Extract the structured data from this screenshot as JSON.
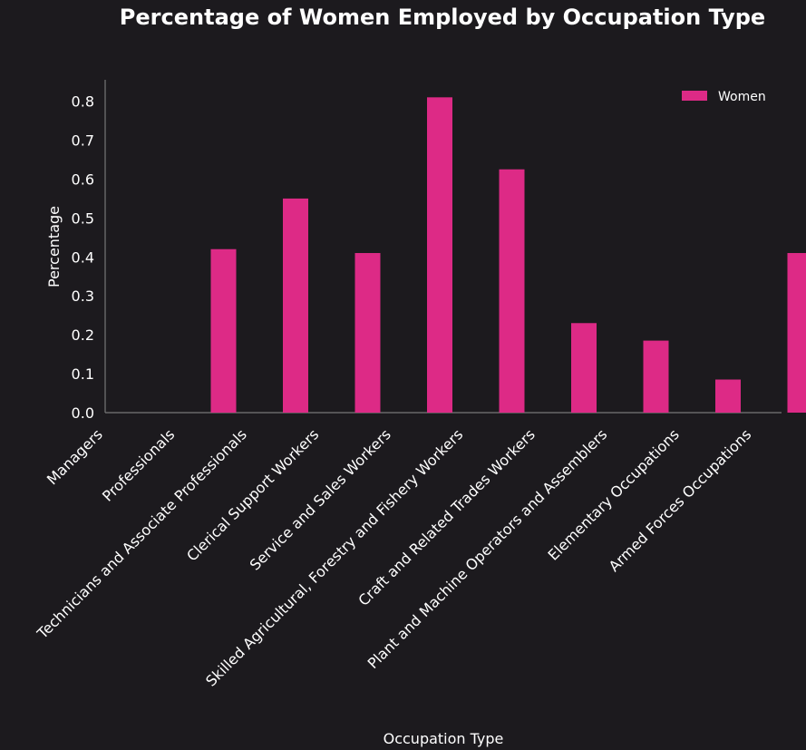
{
  "chart_data": {
    "type": "bar",
    "title": "Percentage of Women Employed by Occupation Type",
    "xlabel": "Occupation Type",
    "ylabel": "Percentage",
    "categories": [
      "Managers",
      "Professionals",
      "Technicians and Associate Professionals",
      "Clerical Support Workers",
      "Service and Sales Workers",
      "Skilled Agricultural, Forestry and Fishery Workers",
      "Craft and Related Trades Workers",
      "Plant and Machine Operators and Assemblers",
      "Elementary Occupations",
      "Armed Forces Occupations"
    ],
    "series": [
      {
        "name": "Women",
        "color": "#dd2a86",
        "values": [
          0.0,
          0.42,
          0.55,
          0.41,
          0.81,
          0.625,
          0.23,
          0.185,
          0.085,
          0.41
        ]
      }
    ],
    "yticks": [
      "0.0",
      "0.1",
      "0.2",
      "0.3",
      "0.4",
      "0.5",
      "0.6",
      "0.7",
      "0.8"
    ],
    "ylim": [
      0,
      0.855
    ],
    "grid": false,
    "legend_position": "top-right",
    "colors": {
      "background": "#1c1a1e",
      "text": "#ffffff",
      "axis": "#777777"
    }
  }
}
